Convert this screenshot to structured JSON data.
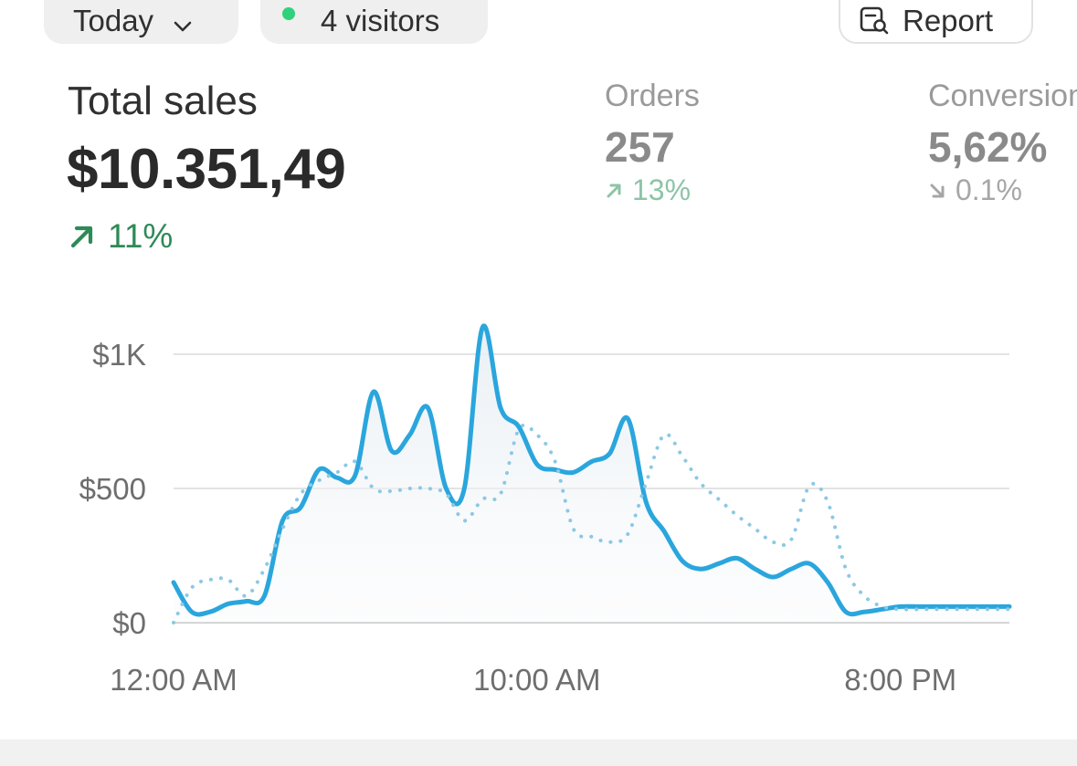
{
  "filters": {
    "period_label": "Today",
    "visitors_label": "4 visitors",
    "report_label": "Report"
  },
  "metrics": {
    "total_sales": {
      "label": "Total sales",
      "value": "$10.351,49",
      "change": "11%",
      "direction": "up"
    },
    "orders": {
      "label": "Orders",
      "value": "257",
      "change": "13%",
      "direction": "up"
    },
    "conversion": {
      "label": "Conversion",
      "value": "5,62%",
      "change": "0.1%",
      "direction": "down"
    }
  },
  "colors": {
    "accent_line": "#2aa6dd",
    "comparison_line": "#8cc8e4",
    "positive": "#2e8a57",
    "live_dot": "#2fd27a"
  },
  "chart_data": {
    "type": "line",
    "y_ticks": [
      "$0",
      "$500",
      "$1K"
    ],
    "ylim": [
      0,
      1000
    ],
    "x_ticks": [
      "12:00 AM",
      "10:00 AM",
      "8:00 PM"
    ],
    "xlim": [
      0,
      23
    ],
    "grid": true,
    "series": [
      {
        "style": "solid",
        "x": [
          0,
          0.5,
          1,
          1.5,
          2,
          2.5,
          3,
          3.5,
          4,
          4.5,
          5,
          5.5,
          6,
          6.5,
          7,
          7.5,
          8,
          8.5,
          9,
          9.5,
          10,
          10.5,
          11,
          11.5,
          12,
          12.5,
          13,
          13.5,
          14,
          14.5,
          15,
          15.5,
          16,
          16.5,
          17,
          17.5,
          18,
          18.5,
          19,
          19.5,
          20,
          20.5,
          21,
          21.5,
          22,
          22.5,
          23
        ],
        "values": [
          150,
          40,
          40,
          70,
          80,
          100,
          380,
          430,
          570,
          540,
          550,
          860,
          640,
          700,
          800,
          500,
          500,
          1100,
          800,
          730,
          590,
          570,
          560,
          600,
          630,
          760,
          450,
          340,
          230,
          200,
          220,
          240,
          200,
          170,
          200,
          220,
          150,
          40,
          40,
          50,
          60,
          60,
          60,
          60,
          60,
          60,
          60
        ]
      },
      {
        "style": "dotted",
        "x": [
          0,
          0.5,
          1,
          1.5,
          2,
          2.5,
          3,
          3.5,
          4,
          4.5,
          5,
          5.5,
          6,
          6.5,
          7,
          7.5,
          8,
          8.5,
          9,
          9.5,
          10,
          10.5,
          11,
          11.5,
          12,
          12.5,
          13,
          13.5,
          14,
          14.5,
          15,
          15.5,
          16,
          16.5,
          17,
          17.5,
          18,
          18.5,
          19,
          19.5,
          20,
          20.5,
          21,
          21.5,
          22,
          22.5,
          23
        ],
        "values": [
          0,
          130,
          160,
          160,
          100,
          200,
          350,
          480,
          530,
          560,
          600,
          500,
          490,
          500,
          500,
          480,
          380,
          460,
          480,
          720,
          700,
          600,
          350,
          320,
          300,
          330,
          520,
          700,
          620,
          520,
          460,
          400,
          350,
          300,
          310,
          510,
          450,
          200,
          100,
          60,
          50,
          50,
          50,
          50,
          50,
          50,
          50
        ]
      }
    ]
  }
}
